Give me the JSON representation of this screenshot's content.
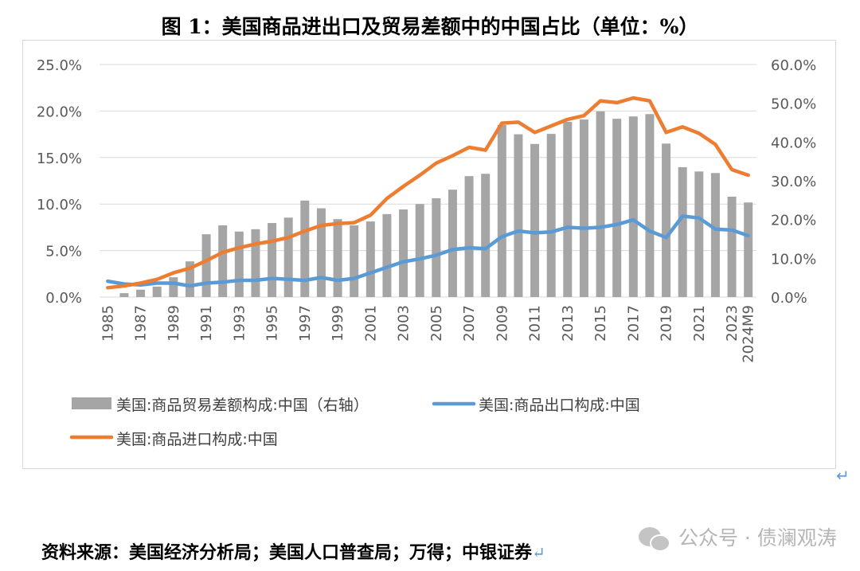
{
  "title": "图 1：美国商品进出口及贸易差额中的中国占比（单位：%）",
  "source": "资料来源：美国经济分析局；美国人口普查局；万得；中银证券",
  "watermark": "公众号 · 债澜观涛",
  "chart_data": {
    "type": "bar+line",
    "categories": [
      "1985",
      "1986",
      "1987",
      "1988",
      "1989",
      "1990",
      "1991",
      "1992",
      "1993",
      "1994",
      "1995",
      "1996",
      "1997",
      "1998",
      "1999",
      "2000",
      "2001",
      "2002",
      "2003",
      "2004",
      "2005",
      "2006",
      "2007",
      "2008",
      "2009",
      "2010",
      "2011",
      "2012",
      "2013",
      "2014",
      "2015",
      "2016",
      "2017",
      "2018",
      "2019",
      "2020",
      "2021",
      "2022",
      "2023",
      "2024M9"
    ],
    "x_tick_labels": [
      "1985",
      "1987",
      "1989",
      "1991",
      "1993",
      "1995",
      "1997",
      "1999",
      "2001",
      "2003",
      "2005",
      "2007",
      "2009",
      "2011",
      "2013",
      "2015",
      "2017",
      "2019",
      "2021",
      "2023",
      "2024M9"
    ],
    "left_axis": {
      "ylim": [
        0,
        25
      ],
      "ticks": [
        "0.0%",
        "5.0%",
        "10.0%",
        "15.0%",
        "20.0%",
        "25.0%"
      ]
    },
    "right_axis": {
      "ylim": [
        0,
        60
      ],
      "ticks": [
        "0.0%",
        "10.0%",
        "20.0%",
        "30.0%",
        "40.0%",
        "50.0%",
        "60.0%"
      ]
    },
    "grid": true,
    "legend_placement": "bottom",
    "series": [
      {
        "name": "美国:商品贸易差额构成:中国（右轴）",
        "type": "bar",
        "axis": "right",
        "color": "#a5a5a5",
        "values": [
          0,
          1.0,
          1.9,
          2.7,
          5.1,
          9.2,
          16.2,
          18.5,
          16.9,
          17.5,
          19.1,
          20.5,
          24.9,
          22.9,
          20.1,
          18.5,
          19.5,
          21.4,
          22.6,
          24.0,
          25.5,
          27.7,
          31.2,
          31.8,
          44.4,
          42.0,
          39.5,
          42.1,
          45.2,
          45.8,
          47.9,
          46.0,
          46.6,
          47.2,
          39.6,
          33.5,
          32.4,
          32.0,
          25.9,
          24.4
        ]
      },
      {
        "name": "美国:商品出口构成:中国",
        "type": "line",
        "axis": "left",
        "color": "#5b9bd5",
        "values": [
          1.7,
          1.4,
          1.3,
          1.5,
          1.5,
          1.2,
          1.5,
          1.6,
          1.8,
          1.8,
          2.0,
          1.9,
          1.8,
          2.1,
          1.8,
          2.0,
          2.6,
          3.2,
          3.8,
          4.1,
          4.5,
          5.1,
          5.3,
          5.2,
          6.5,
          7.1,
          6.9,
          7.0,
          7.5,
          7.4,
          7.5,
          7.8,
          8.3,
          7.1,
          6.4,
          8.7,
          8.5,
          7.3,
          7.2,
          6.6
        ]
      },
      {
        "name": "美国:商品进口构成:中国",
        "type": "line",
        "axis": "left",
        "color": "#ed7d31",
        "values": [
          1.0,
          1.2,
          1.5,
          1.9,
          2.6,
          3.1,
          3.9,
          4.8,
          5.3,
          5.7,
          6.0,
          6.4,
          7.1,
          7.7,
          7.9,
          8.0,
          8.8,
          10.6,
          11.9,
          13.1,
          14.4,
          15.2,
          16.1,
          15.8,
          18.7,
          18.8,
          17.7,
          18.4,
          19.1,
          19.5,
          21.1,
          20.9,
          21.4,
          21.1,
          17.7,
          18.3,
          17.6,
          16.4,
          13.7,
          13.1
        ]
      }
    ]
  }
}
